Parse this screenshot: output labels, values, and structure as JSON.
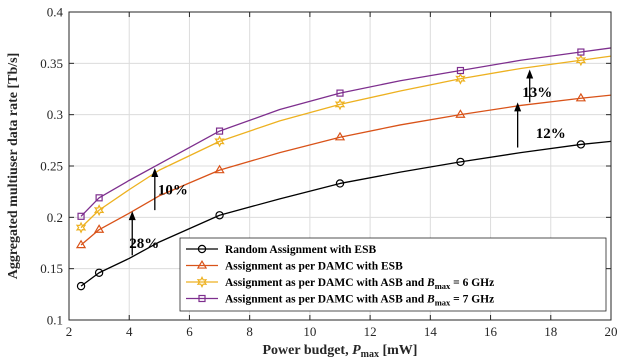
{
  "chart_data": {
    "type": "line",
    "xlabel": "Power budget, ",
    "xlabel_sym": "P",
    "xlabel_sub": "max",
    "xlabel_unit": " [mW]",
    "ylabel": "Aggregated multiuser data rate [Tb/s]",
    "xlim": [
      2,
      20
    ],
    "ylim": [
      0.1,
      0.4
    ],
    "xticks": [
      2,
      4,
      6,
      8,
      10,
      12,
      14,
      16,
      18,
      20
    ],
    "yticks": [
      0.1,
      0.15,
      0.2,
      0.25,
      0.3,
      0.35,
      0.4
    ],
    "grid": true,
    "legend_position": "bottom-right",
    "series": [
      {
        "name": "Random Assignment with ESB",
        "color": "#000000",
        "marker": "circle",
        "x": [
          2.4,
          3,
          4,
          5,
          7,
          9,
          11,
          13,
          15,
          17,
          19,
          20
        ],
        "y": [
          0.133,
          0.146,
          0.16,
          0.176,
          0.202,
          0.218,
          0.233,
          0.244,
          0.254,
          0.263,
          0.271,
          0.274
        ],
        "marker_x": [
          2.4,
          3,
          7,
          11,
          15,
          19
        ]
      },
      {
        "name": "Assignment as per DAMC with ESB",
        "color": "#d95319",
        "marker": "triangle",
        "x": [
          2.4,
          3,
          4,
          5,
          7,
          9,
          11,
          13,
          15,
          17,
          19,
          20
        ],
        "y": [
          0.173,
          0.188,
          0.204,
          0.221,
          0.246,
          0.263,
          0.278,
          0.29,
          0.3,
          0.309,
          0.316,
          0.319
        ],
        "marker_x": [
          2.4,
          3,
          7,
          11,
          15,
          19
        ]
      },
      {
        "name": "Assignment as per DAMC with ASB and ",
        "name_sym": "B",
        "name_sub": "max",
        "name_tail": " = 6 GHz",
        "color": "#edb120",
        "marker": "hexagram",
        "x": [
          2.4,
          3,
          4,
          5,
          7,
          9,
          11,
          13,
          15,
          17,
          19,
          20
        ],
        "y": [
          0.19,
          0.207,
          0.227,
          0.246,
          0.274,
          0.294,
          0.31,
          0.323,
          0.335,
          0.345,
          0.353,
          0.357
        ],
        "marker_x": [
          2.4,
          3,
          7,
          11,
          15,
          19
        ]
      },
      {
        "name": "Assignment as per DAMC with ASB and ",
        "name_sym": "B",
        "name_sub": "max",
        "name_tail": " = 7 GHz",
        "color": "#7e2f8e",
        "marker": "square",
        "x": [
          2.4,
          3,
          4,
          5,
          7,
          9,
          11,
          13,
          15,
          17,
          19,
          20
        ],
        "y": [
          0.201,
          0.219,
          0.236,
          0.252,
          0.284,
          0.305,
          0.321,
          0.333,
          0.343,
          0.353,
          0.361,
          0.365
        ],
        "marker_x": [
          2.4,
          3,
          7,
          11,
          15,
          19
        ]
      }
    ],
    "annotations": [
      {
        "text": "28%",
        "arrow_x": 4.1,
        "arrow_from": 0.163,
        "arrow_to": 0.206,
        "text_x": 4.5,
        "text_y": 0.175
      },
      {
        "text": "10%",
        "arrow_x": 4.85,
        "arrow_from": 0.207,
        "arrow_to": 0.248,
        "text_x": 5.45,
        "text_y": 0.227
      },
      {
        "text": "12%",
        "arrow_x": 16.9,
        "arrow_from": 0.268,
        "arrow_to": 0.312,
        "text_x": 18.0,
        "text_y": 0.282
      },
      {
        "text": "13%",
        "arrow_x": 17.3,
        "arrow_from": 0.312,
        "arrow_to": 0.344,
        "text_x": 17.55,
        "text_y": 0.322
      }
    ]
  }
}
